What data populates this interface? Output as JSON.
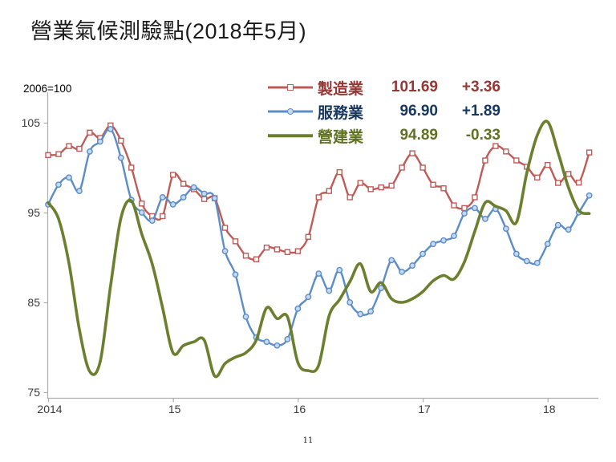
{
  "title": "營業氣候測驗點(2018年5月)",
  "unit_note": "2006=100",
  "page_number": "11",
  "chart_data": {
    "type": "line",
    "title": "營業氣候測驗點(2018年5月)",
    "subtitle_unit": "2006=100",
    "x_axis": {
      "tick_labels": [
        "2014",
        "15",
        "16",
        "17",
        "18"
      ],
      "tick_month_indices": [
        0,
        12,
        24,
        36,
        48
      ],
      "start_month": "2014-01",
      "end_month": "2018-05",
      "n_points": 53
    },
    "y_axis": {
      "tick_labels": [
        "105",
        "95",
        "85",
        "75"
      ],
      "tick_values": [
        105,
        95,
        85,
        75
      ],
      "min": 75,
      "max": 105
    },
    "grid": "off",
    "legend_position": "top-center-inside",
    "series": [
      {
        "name": "製造業",
        "latest_value": "101.69",
        "change": "+3.36",
        "color": "#BF5B57",
        "label_color": "#953735",
        "marker": "square",
        "marker_fill": "#FFFFFF",
        "values": [
          101.4,
          101.5,
          102.4,
          102.1,
          103.9,
          103.3,
          104.7,
          103.0,
          100.0,
          96.0,
          94.6,
          94.6,
          99.2,
          98.2,
          97.6,
          96.5,
          96.6,
          93.3,
          91.8,
          90.2,
          89.8,
          91.1,
          90.9,
          90.6,
          90.7,
          92.3,
          96.7,
          97.4,
          99.5,
          96.7,
          98.3,
          97.6,
          97.8,
          98.0,
          100.0,
          101.6,
          100.0,
          98.1,
          97.7,
          95.8,
          95.5,
          96.7,
          100.8,
          102.4,
          101.8,
          100.8,
          100.1,
          98.9,
          100.3,
          98.3,
          99.3,
          98.33,
          101.69
        ]
      },
      {
        "name": "服務業",
        "latest_value": "96.90",
        "change": "+1.89",
        "color": "#5B8DC8",
        "label_color": "#17375E",
        "marker": "circle",
        "marker_fill": "#C5D9F1",
        "values": [
          95.9,
          98.1,
          98.9,
          97.4,
          101.8,
          102.9,
          104.3,
          101.1,
          96.4,
          95.0,
          94.1,
          96.7,
          95.9,
          96.7,
          97.8,
          97.1,
          96.6,
          90.7,
          88.1,
          83.4,
          81.1,
          80.6,
          80.2,
          80.9,
          84.3,
          85.6,
          88.2,
          86.3,
          88.6,
          85.0,
          83.7,
          84.0,
          86.6,
          89.7,
          88.4,
          89.1,
          90.4,
          91.5,
          91.9,
          92.4,
          94.9,
          95.5,
          94.3,
          95.4,
          93.2,
          90.4,
          89.6,
          89.4,
          91.5,
          93.6,
          93.1,
          95.01,
          96.9
        ]
      },
      {
        "name": "營建業",
        "latest_value": "94.89",
        "change": "-0.33",
        "color": "#6C7F2E",
        "label_color": "#5F7122",
        "marker": "none",
        "marker_fill": "none",
        "values": [
          96.1,
          94.3,
          89.4,
          82.0,
          77.3,
          78.4,
          86.8,
          94.4,
          96.3,
          92.6,
          89.3,
          84.4,
          79.4,
          80.2,
          80.6,
          80.8,
          76.8,
          78.2,
          78.9,
          79.4,
          80.8,
          84.4,
          83.2,
          83.4,
          78.3,
          77.4,
          78.0,
          83.5,
          85.3,
          87.3,
          89.3,
          86.2,
          87.2,
          85.4,
          85.0,
          85.4,
          86.2,
          87.4,
          88.0,
          87.6,
          89.5,
          92.9,
          96.1,
          95.7,
          95.2,
          93.9,
          99.4,
          103.6,
          105.1,
          101.7,
          97.8,
          95.22,
          94.89
        ]
      }
    ]
  }
}
